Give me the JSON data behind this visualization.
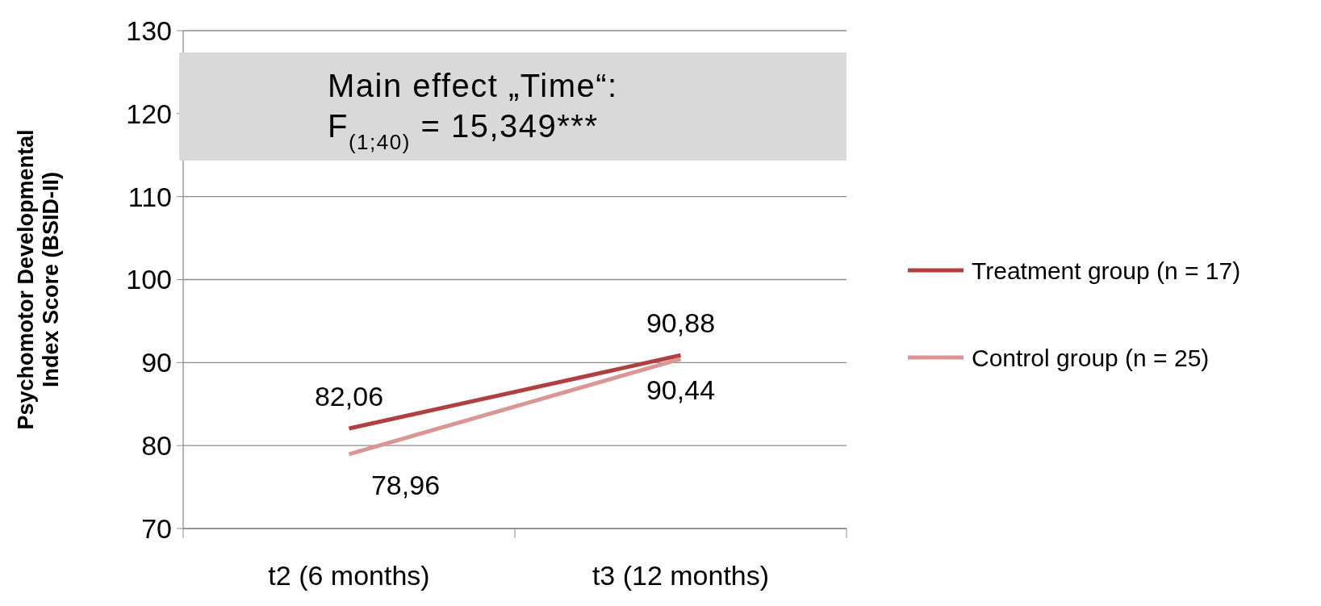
{
  "chart_data": {
    "type": "line",
    "categories": [
      "t2 (6 months)",
      "t3 (12 months)"
    ],
    "ylabel": "Psychomotor Developmental Index Score (BSID-II)",
    "ylim": [
      70,
      130
    ],
    "yticks": [
      70,
      80,
      90,
      100,
      110,
      120,
      130
    ],
    "grid": "y",
    "legend": "right",
    "marker": "none",
    "line_style": "solid",
    "series": [
      {
        "name": "Treatment group (n = 17)",
        "color": "#b0403f",
        "values": [
          82.06,
          90.88
        ],
        "value_labels": [
          "82,06",
          "90,88"
        ]
      },
      {
        "name": "Control group (n = 25)",
        "color": "#d99694",
        "values": [
          78.96,
          90.44
        ],
        "value_labels": [
          "78,96",
          "90,44"
        ]
      }
    ],
    "annotations": [
      "Main effect „Time“:",
      "F$_{(1;40)}$ = 15,349***"
    ]
  }
}
